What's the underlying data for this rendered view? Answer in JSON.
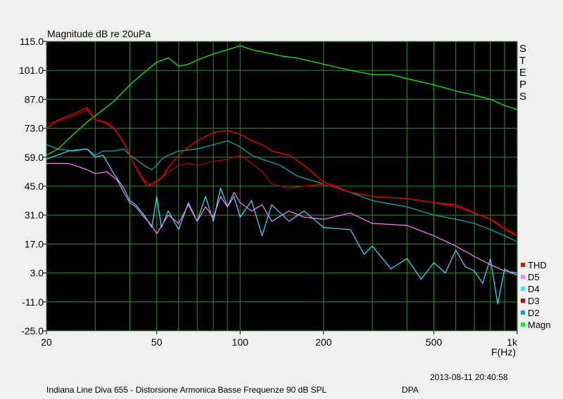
{
  "chart_data": {
    "type": "line",
    "title": "Magnitude dB re 20uPa",
    "xlabel": "F(Hz)",
    "xscale": "log",
    "xlim": [
      20,
      1000
    ],
    "ylim": [
      -25,
      115
    ],
    "xticks": [
      {
        "value": 20,
        "label": "20"
      },
      {
        "value": 50,
        "label": "50"
      },
      {
        "value": 100,
        "label": "100"
      },
      {
        "value": 200,
        "label": "200"
      },
      {
        "value": 500,
        "label": "500"
      },
      {
        "value": 1000,
        "label": "1k"
      }
    ],
    "yticks": [
      115.0,
      101.0,
      87.0,
      73.0,
      59.0,
      45.0,
      31.0,
      17.0,
      3.0,
      -11.0,
      -25.0
    ],
    "ytick_labels": [
      "115.0",
      "101.0",
      "87.0",
      "73.0",
      "59.0",
      "45.0",
      "31.0",
      "17.0",
      "3.0",
      "-11.0",
      "-25.0"
    ],
    "grid": true,
    "background": "#000000",
    "grid_color": "#2e8b2e",
    "side_label": "STEPS",
    "legend_position": "right-bottom",
    "series": [
      {
        "name": "THD",
        "color": "#ff0000",
        "x": [
          20,
          22,
          25,
          28,
          30,
          32,
          35,
          38,
          42,
          46,
          49,
          52,
          55,
          60,
          65,
          70,
          80,
          90,
          100,
          110,
          120,
          130,
          150,
          170,
          200,
          250,
          300,
          400,
          500,
          600,
          700,
          800,
          900,
          1000
        ],
        "y": [
          73,
          77,
          80,
          83,
          77,
          76,
          73,
          66,
          54,
          45,
          47,
          49,
          54,
          60,
          64,
          67,
          71,
          72,
          70,
          67,
          65,
          62,
          60,
          55,
          47,
          42,
          40,
          39,
          37,
          36,
          32,
          29,
          24,
          21
        ]
      },
      {
        "name": "D5",
        "color": "#ff80ff",
        "x": [
          20,
          24,
          28,
          30,
          33,
          36,
          38,
          40,
          42,
          45,
          48,
          50,
          55,
          60,
          65,
          70,
          75,
          80,
          85,
          90,
          95,
          100,
          110,
          120,
          130,
          150,
          170,
          200,
          250,
          300,
          400,
          500,
          600,
          700,
          800,
          900,
          1000
        ],
        "y": [
          56,
          56,
          53,
          51,
          52,
          48,
          42,
          37,
          35,
          30,
          26,
          22,
          31,
          27,
          36,
          28,
          35,
          30,
          40,
          35,
          42,
          37,
          33,
          36,
          28,
          33,
          30,
          29,
          32,
          27,
          26,
          21,
          16,
          11,
          7,
          4,
          3
        ]
      },
      {
        "name": "D4",
        "color": "#40e0ff",
        "x": [
          20,
          24,
          28,
          30,
          32,
          35,
          38,
          40,
          42,
          45,
          48,
          50,
          52,
          55,
          60,
          65,
          70,
          75,
          80,
          85,
          90,
          95,
          100,
          110,
          120,
          130,
          150,
          170,
          200,
          250,
          280,
          300,
          350,
          400,
          450,
          500,
          550,
          600,
          650,
          700,
          750,
          800,
          850,
          900,
          950,
          1000
        ],
        "y": [
          58,
          62,
          63,
          59,
          60,
          51,
          44,
          38,
          36,
          31,
          25,
          40,
          25,
          33,
          24,
          37,
          28,
          40,
          28,
          44,
          35,
          40,
          30,
          38,
          21,
          36,
          28,
          33,
          25,
          24,
          12,
          16,
          5,
          10,
          0,
          8,
          3,
          14,
          6,
          4,
          -2,
          10,
          -12,
          5,
          3,
          2
        ]
      },
      {
        "name": "D3",
        "color": "#c00000",
        "x": [
          20,
          24,
          28,
          30,
          33,
          35,
          38,
          40,
          42,
          45,
          48,
          50,
          55,
          60,
          65,
          70,
          80,
          90,
          100,
          110,
          120,
          130,
          150,
          170,
          200,
          250,
          300,
          400,
          500,
          600,
          700,
          800,
          900,
          1000
        ],
        "y": [
          75,
          78,
          82,
          77,
          76,
          73,
          66,
          60,
          54,
          48,
          45,
          47,
          52,
          55,
          56,
          55,
          57,
          58,
          60,
          56,
          52,
          46,
          44,
          45,
          46,
          42,
          40,
          39,
          37,
          35,
          32,
          29,
          25,
          21
        ]
      },
      {
        "name": "D2",
        "color": "#00b0b0",
        "x": [
          20,
          22,
          25,
          28,
          30,
          32,
          35,
          38,
          40,
          42,
          45,
          48,
          50,
          52,
          55,
          60,
          70,
          80,
          90,
          100,
          110,
          120,
          140,
          160,
          200,
          250,
          300,
          400,
          500,
          600,
          700,
          800,
          900,
          1000
        ],
        "y": [
          65,
          63,
          62,
          63,
          60,
          62,
          62,
          63,
          60,
          58,
          55,
          53,
          55,
          58,
          60,
          62,
          63,
          65,
          67,
          64,
          60,
          58,
          55,
          50,
          46,
          42,
          38,
          35,
          31,
          29,
          27,
          24,
          21,
          18
        ]
      },
      {
        "name": "Magn",
        "color": "#00ff00",
        "x": [
          20,
          22,
          25,
          28,
          30,
          35,
          40,
          45,
          50,
          55,
          60,
          65,
          70,
          80,
          90,
          100,
          110,
          120,
          140,
          160,
          200,
          250,
          300,
          350,
          400,
          500,
          600,
          700,
          800,
          900,
          1000
        ],
        "y": [
          60,
          63,
          70,
          76,
          79,
          86,
          94,
          100,
          105,
          107,
          103,
          104,
          106,
          109,
          111,
          113,
          111,
          110,
          108,
          107,
          104,
          101,
          99,
          99,
          97,
          94,
          91,
          89,
          87,
          84,
          82
        ]
      }
    ]
  },
  "footer": {
    "timestamp": "2013-08-11 20:40:58",
    "caption": "Indiana Line Diva 655 - Distorsione Armonica Basse Frequenze 90 dB SPL",
    "source": "DPA"
  }
}
